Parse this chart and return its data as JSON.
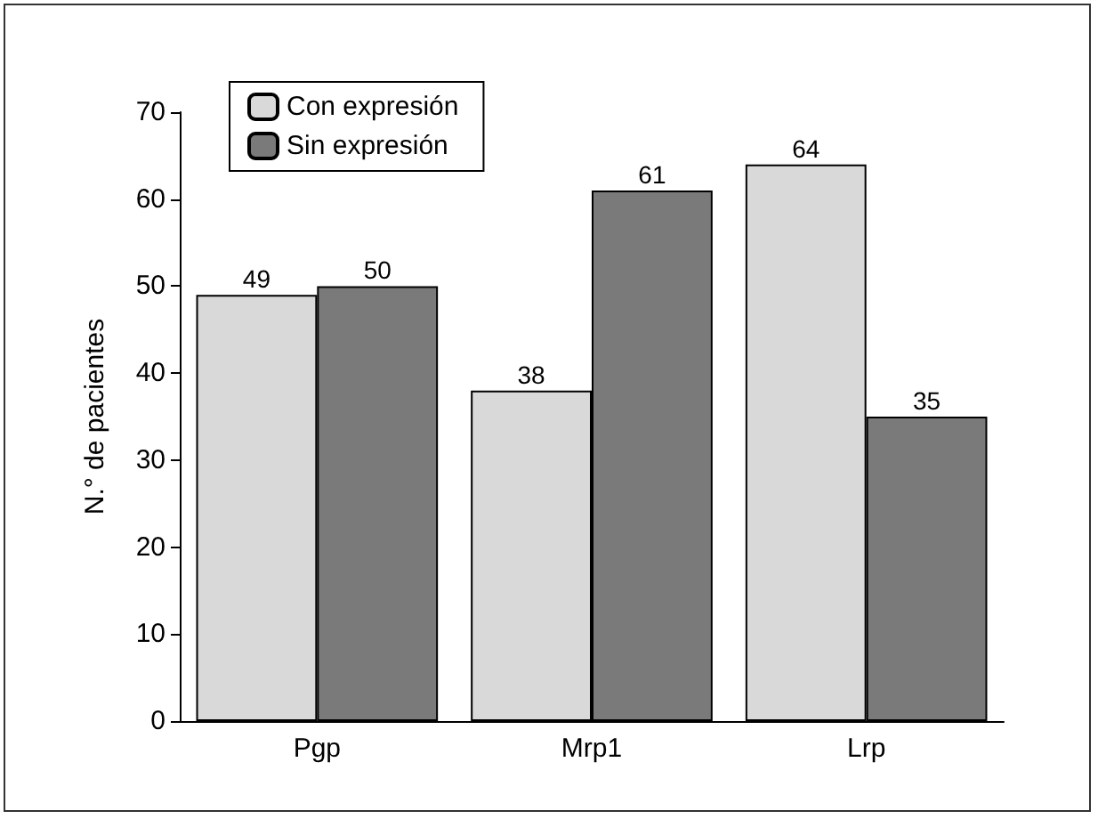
{
  "chart_data": {
    "type": "bar",
    "ylabel": "N.° de pacientes",
    "categories": [
      "Pgp",
      "Mrp1",
      "Lrp"
    ],
    "series": [
      {
        "name": "Con expresión",
        "color": "#d9d9d9",
        "values": [
          49,
          38,
          64
        ]
      },
      {
        "name": "Sin expresión",
        "color": "#7a7a7a",
        "values": [
          50,
          61,
          35
        ]
      }
    ],
    "ylim": [
      0,
      70
    ],
    "yticks": [
      0,
      10,
      20,
      30,
      40,
      50,
      60,
      70
    ],
    "grid": false,
    "legend": "top left",
    "data_labels": true
  }
}
